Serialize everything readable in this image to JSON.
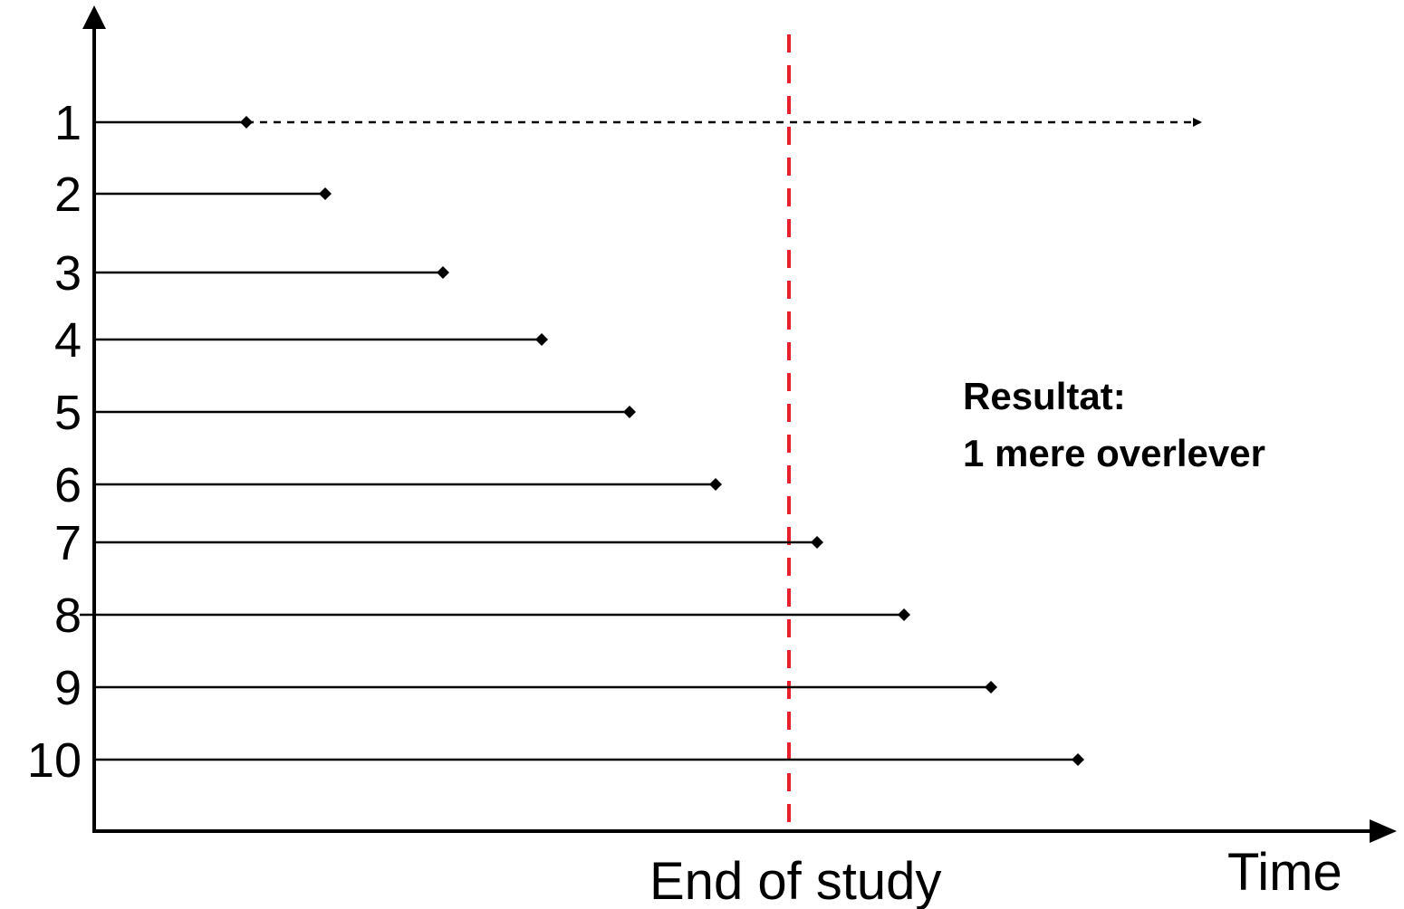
{
  "diagram": {
    "x_axis_label": "Time",
    "study_end_label": "End of study",
    "result_title": "Resultat:",
    "result_text": "1 mere overlever",
    "colors": {
      "lines": "#000000",
      "study_end_line": "#e8202a",
      "background": "#ffffff"
    },
    "subjects": [
      {
        "label": "1",
        "event_type": "event-then-followup-arrow"
      },
      {
        "label": "2",
        "event_type": "event"
      },
      {
        "label": "3",
        "event_type": "event"
      },
      {
        "label": "4",
        "event_type": "event"
      },
      {
        "label": "5",
        "event_type": "event"
      },
      {
        "label": "6",
        "event_type": "event"
      },
      {
        "label": "7",
        "event_type": "event"
      },
      {
        "label": "8",
        "event_type": "event"
      },
      {
        "label": "9",
        "event_type": "event"
      },
      {
        "label": "10",
        "event_type": "event"
      }
    ]
  }
}
